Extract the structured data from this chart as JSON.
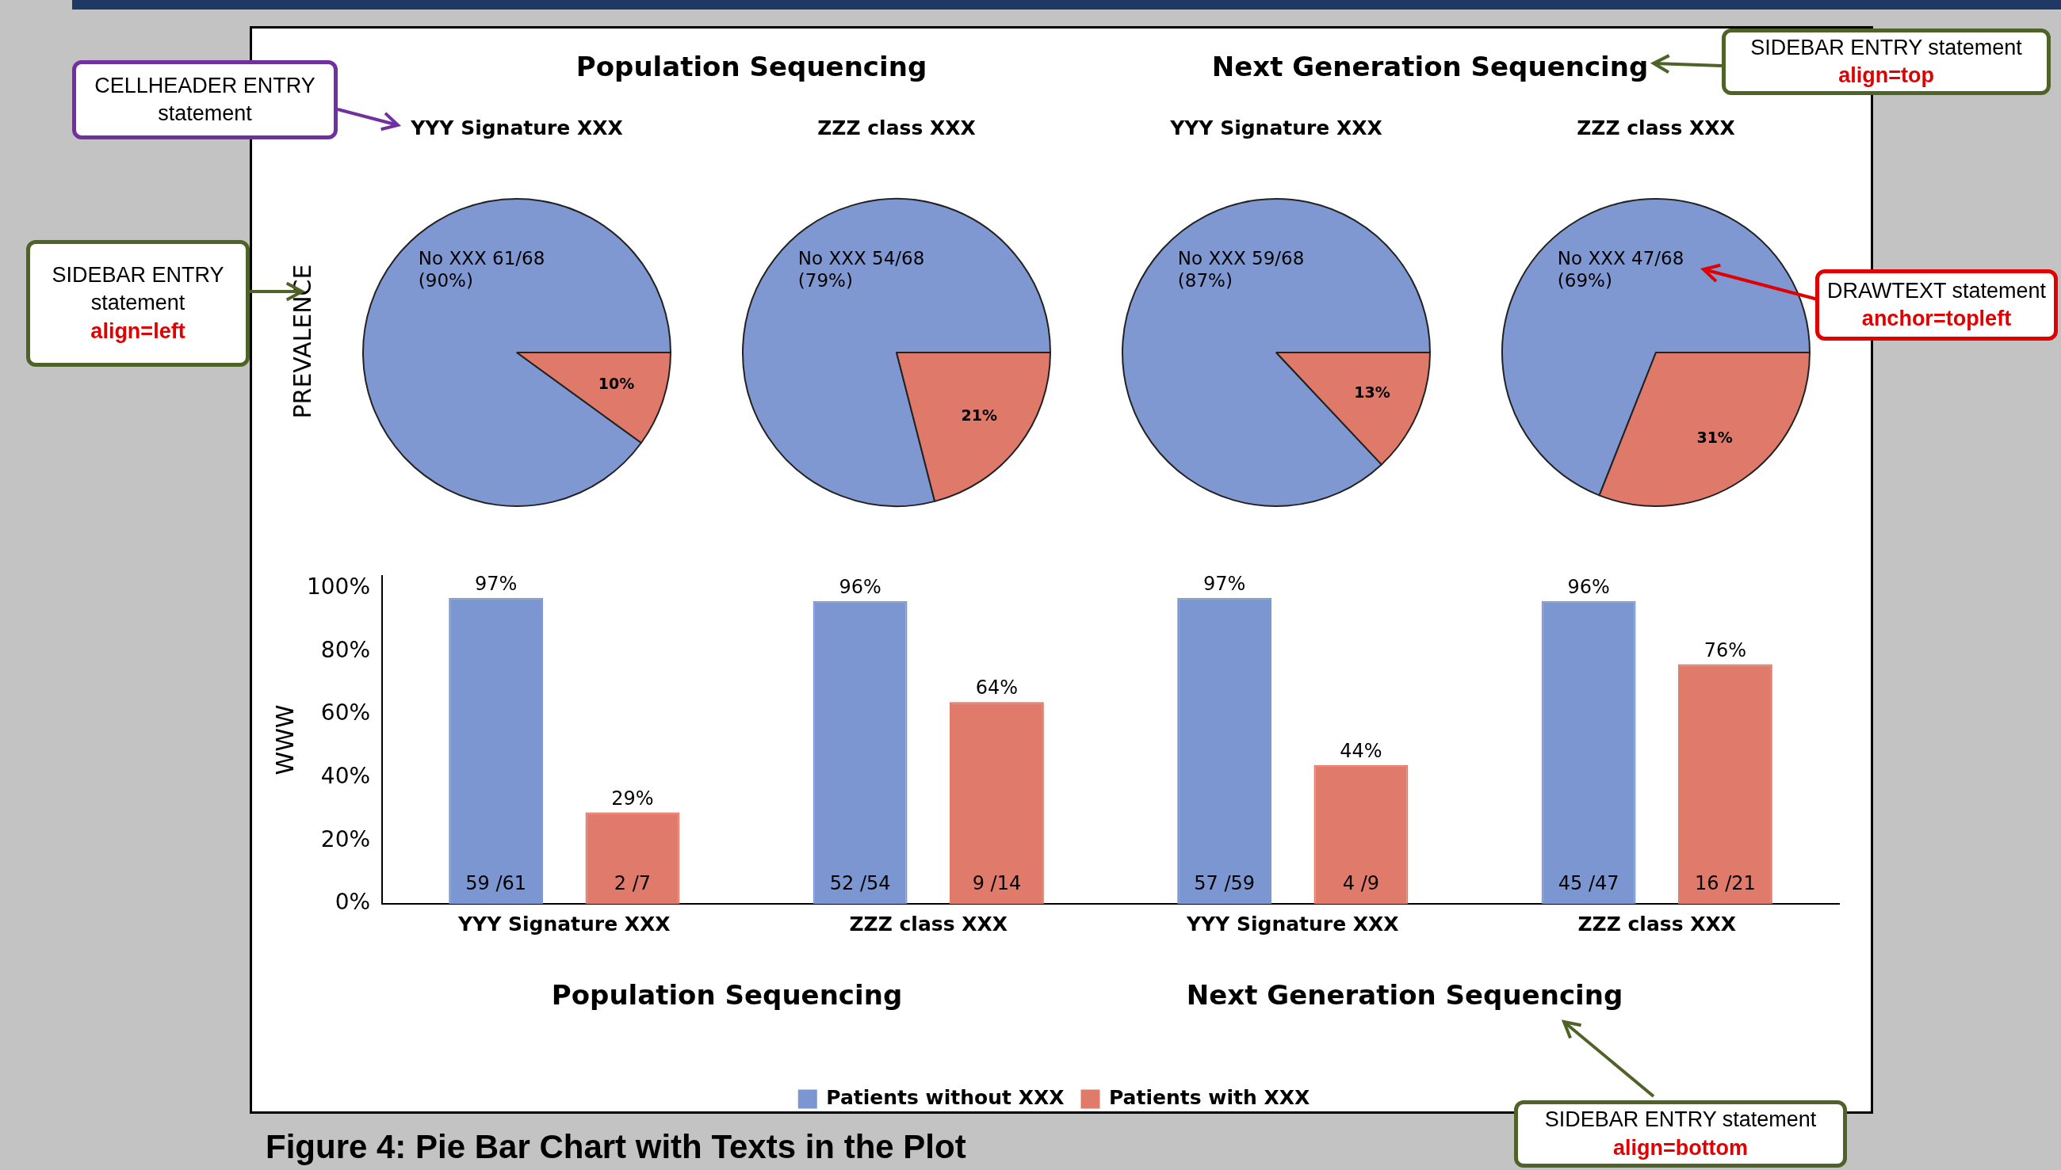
{
  "chart_data": [
    {
      "type": "pie",
      "title": "YYY Signature XXX",
      "ylabel": "PREVALENCE",
      "categories": [
        null,
        null
      ],
      "values": [
        90,
        10
      ],
      "colors": [
        "#7f98d2",
        "#df7a6a"
      ],
      "value_labels": [
        null,
        "10%"
      ],
      "annotations": [
        "No XXX 61/68 (90%)"
      ]
    },
    {
      "type": "pie",
      "title": "ZZZ class XXX",
      "categories": [
        null,
        null
      ],
      "values": [
        79,
        21
      ],
      "colors": [
        "#7f98d2",
        "#df7a6a"
      ],
      "value_labels": [
        null,
        "21%"
      ],
      "annotations": [
        "No XXX 54/68 (79%)"
      ]
    },
    {
      "type": "pie",
      "title": "YYY Signature XXX",
      "categories": [
        null,
        null
      ],
      "values": [
        87,
        13
      ],
      "colors": [
        "#7f98d2",
        "#df7a6a"
      ],
      "value_labels": [
        null,
        "13%"
      ],
      "annotations": [
        "No XXX 59/68 (87%)"
      ]
    },
    {
      "type": "pie",
      "title": "ZZZ class XXX",
      "categories": [
        null,
        null
      ],
      "values": [
        69,
        31
      ],
      "colors": [
        "#7f98d2",
        "#df7a6a"
      ],
      "value_labels": [
        null,
        "31%"
      ],
      "annotations": [
        "No XXX 47/68 (69%)"
      ]
    },
    {
      "type": "bar",
      "ylabel": "WWW",
      "categories": [
        "YYY Signature XXX",
        "ZZZ class XXX",
        "YYY Signature XXX",
        "ZZZ class XXX"
      ],
      "series": [
        {
          "name": "Patients without XXX",
          "color": "#7b96d0",
          "values": [
            97,
            96,
            97,
            96
          ],
          "value_labels": [
            "97%",
            "96%",
            "97%",
            "96%"
          ]
        },
        {
          "name": "Patients with XXX",
          "color": "#e07b6b",
          "values": [
            29,
            64,
            44,
            76
          ],
          "value_labels": [
            "29%",
            "64%",
            "44%",
            "76%"
          ]
        }
      ],
      "ylim": [
        0,
        104
      ],
      "yticks": [
        {
          "value": 0,
          "label": "0%"
        },
        {
          "value": 20,
          "label": "20%"
        },
        {
          "value": 40,
          "label": "40%"
        },
        {
          "value": 60,
          "label": "60%"
        },
        {
          "value": 80,
          "label": "80%"
        },
        {
          "value": 100,
          "label": "100%"
        }
      ],
      "grid": false,
      "legend": "bottom",
      "annotations": [
        "59 /61",
        "2 /7",
        "52 /54",
        "9 /14",
        "57 /59",
        "4 /9",
        "45 /47",
        "16 /21"
      ]
    },
    {
      "type": "other",
      "title": "Figure 4: Pie Bar Chart with Texts in the Plot",
      "annotations": [
        "Population Sequencing",
        "Next Generation Sequencing",
        "Population Sequencing",
        "Next Generation Sequencing",
        "CELLHEADER ENTRY statement",
        "SIDEBAR ENTRY statement",
        "align=left",
        "SIDEBAR ENTRY statement",
        "align=top",
        "DRAWTEXT statement",
        "anchor=topleft",
        "SIDEBAR ENTRY statement",
        "align=bottom"
      ]
    }
  ]
}
